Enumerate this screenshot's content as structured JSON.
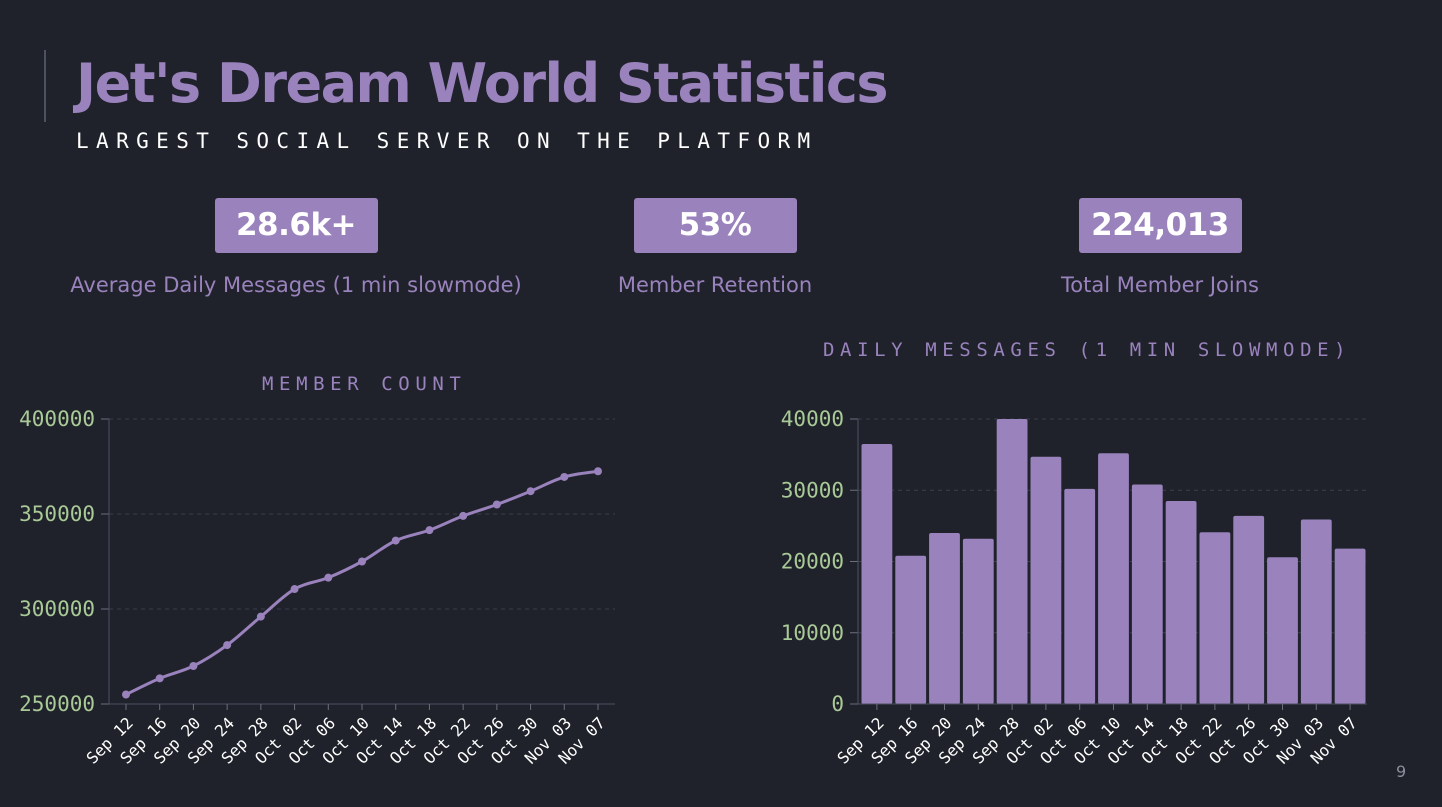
{
  "slide": {
    "title": "Jet's Dream World Statistics",
    "subtitle": "LARGEST SOCIAL SERVER ON THE PLATFORM",
    "page_number": "9"
  },
  "stats": [
    {
      "value": "28.6k+",
      "label": "Average Daily Messages (1 min slowmode)"
    },
    {
      "value": "53%",
      "label": "Member Retention"
    },
    {
      "value": "224,013",
      "label": "Total Member Joins"
    }
  ],
  "colors": {
    "background": "#1f222b",
    "accent": "#9a82bd",
    "tick_text": "#a9c996",
    "grid": "#3a3f4b"
  },
  "chart_data": [
    {
      "type": "line",
      "title": "MEMBER COUNT",
      "x": [
        "Sep 12",
        "Sep 16",
        "Sep 20",
        "Sep 24",
        "Sep 28",
        "Oct 02",
        "Oct 06",
        "Oct 10",
        "Oct 14",
        "Oct 18",
        "Oct 22",
        "Oct 26",
        "Oct 30",
        "Nov 03",
        "Nov 07"
      ],
      "series": [
        {
          "values": [
            255000,
            263500,
            270000,
            281000,
            296000,
            310500,
            316500,
            325000,
            336000,
            341500,
            349000,
            355000,
            362000,
            369500,
            372500
          ]
        }
      ],
      "ylim": [
        250000,
        400000
      ],
      "yticks": [
        250000,
        300000,
        350000,
        400000
      ],
      "grid": true,
      "markers": true
    },
    {
      "type": "bar",
      "title": "DAILY MESSAGES (1 MIN SLOWMODE)",
      "categories": [
        "Sep 12",
        "Sep 16",
        "Sep 20",
        "Sep 24",
        "Sep 28",
        "Oct 02",
        "Oct 06",
        "Oct 10",
        "Oct 14",
        "Oct 18",
        "Oct 22",
        "Oct 26",
        "Oct 30",
        "Nov 03",
        "Nov 07"
      ],
      "values": [
        36500,
        20800,
        24000,
        23200,
        40000,
        34700,
        30200,
        35200,
        30800,
        28500,
        24100,
        26400,
        20600,
        25900,
        21800
      ],
      "ylim": [
        0,
        40000
      ],
      "yticks": [
        0,
        10000,
        20000,
        30000,
        40000
      ],
      "grid": true
    }
  ]
}
